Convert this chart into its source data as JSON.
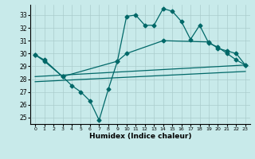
{
  "background_color": "#c8eaea",
  "grid_color": "#aacccc",
  "line_color": "#006868",
  "xlabel": "Humidex (Indice chaleur)",
  "xlim": [
    -0.5,
    23.5
  ],
  "ylim": [
    24.5,
    33.8
  ],
  "yticks": [
    25,
    26,
    27,
    28,
    29,
    30,
    31,
    32,
    33
  ],
  "xticks": [
    0,
    1,
    2,
    3,
    4,
    5,
    6,
    7,
    8,
    9,
    10,
    11,
    12,
    13,
    14,
    15,
    16,
    17,
    18,
    19,
    20,
    21,
    22,
    23
  ],
  "line1_x": [
    0,
    1,
    3,
    4,
    5,
    6,
    7,
    8,
    9,
    10,
    11,
    12,
    13,
    14,
    15,
    16,
    17,
    18,
    19,
    20,
    21,
    22,
    23
  ],
  "line1_y": [
    29.9,
    29.4,
    28.2,
    27.5,
    27.0,
    26.3,
    24.8,
    27.2,
    29.4,
    32.9,
    33.0,
    32.2,
    32.2,
    33.5,
    33.3,
    32.5,
    31.1,
    32.2,
    30.8,
    30.5,
    30.0,
    29.5,
    29.1
  ],
  "line2_x": [
    0,
    1,
    3,
    9,
    10,
    14,
    19,
    20,
    21,
    22,
    23
  ],
  "line2_y": [
    29.9,
    29.5,
    28.2,
    29.4,
    30.0,
    31.0,
    30.9,
    30.4,
    30.2,
    30.0,
    29.1
  ],
  "line3_x": [
    0,
    23
  ],
  "line3_y": [
    28.2,
    29.1
  ],
  "line4_x": [
    0,
    23
  ],
  "line4_y": [
    27.8,
    28.6
  ]
}
